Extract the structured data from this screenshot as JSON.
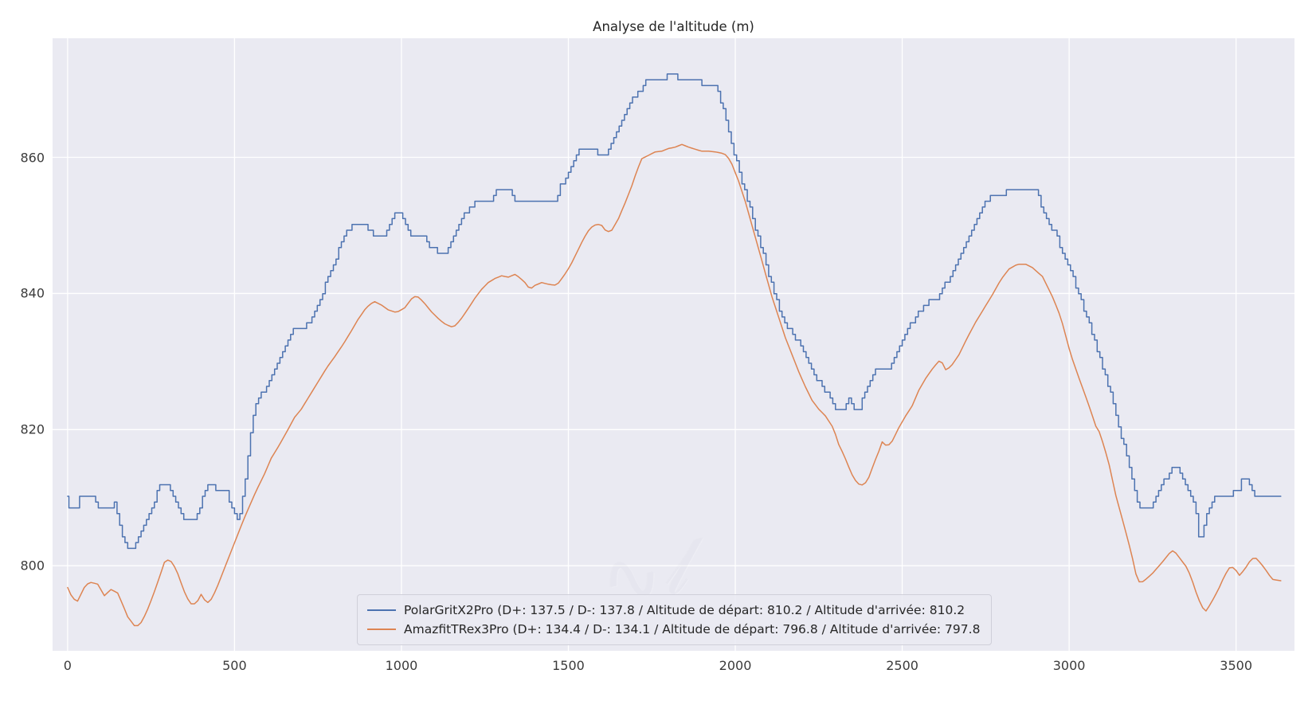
{
  "title": "Analyse de l'altitude (m)",
  "colors": {
    "plot_background": "#eaeaf2",
    "grid": "#ffffff",
    "polar_line": "#4c72b0",
    "amazfit_line": "#dd8452",
    "text": "#262626",
    "tick_text": "#3b3b3b"
  },
  "chart_data": {
    "type": "line",
    "title": "Analyse de l'altitude (m)",
    "xlabel": "",
    "ylabel": "",
    "xlim": [
      -45,
      3675
    ],
    "ylim": [
      787.5,
      877.5
    ],
    "x_ticks": [
      0,
      500,
      1000,
      1500,
      2000,
      2500,
      3000,
      3500
    ],
    "y_ticks": [
      800,
      820,
      840,
      860
    ],
    "grid": true,
    "legend_position": "lower center",
    "series": [
      {
        "name": "PolarGritX2Pro",
        "label": "PolarGritX2Pro (D+: 137.5 / D-: 137.8 / Altitude de départ: 810.2 / Altitude d'arrivée: 810.2",
        "color": "#4c72b0",
        "style": "step",
        "stats": {
          "d_plus": 137.5,
          "d_minus": 137.8,
          "altitude_depart": 810.2,
          "altitude_arrivee": 810.2
        },
        "x": [
          0,
          8,
          30,
          42,
          76,
          96,
          130,
          145,
          160,
          179,
          203,
          218,
          238,
          262,
          282,
          306,
          326,
          355,
          384,
          404,
          418,
          438,
          458,
          477,
          497,
          511,
          521,
          536,
          550,
          565,
          594,
          619,
          643,
          663,
          677,
          711,
          741,
          765,
          790,
          809,
          824,
          843,
          863,
          892,
          907,
          936,
          951,
          966,
          980,
          1005,
          1019,
          1034,
          1073,
          1088,
          1107,
          1141,
          1156,
          1176,
          1195,
          1210,
          1229,
          1268,
          1288,
          1327,
          1342,
          1464,
          1478,
          1498,
          1517,
          1532,
          1547,
          1581,
          1596,
          1610,
          1625,
          1640,
          1654,
          1669,
          1684,
          1698,
          1713,
          1728,
          1742,
          1786,
          1801,
          1820,
          1835,
          1899,
          1908,
          1947,
          1962,
          1977,
          1991,
          2006,
          2021,
          2035,
          2050,
          2065,
          2079,
          2094,
          2109,
          2123,
          2138,
          2153,
          2167,
          2182,
          2197,
          2211,
          2226,
          2241,
          2255,
          2275,
          2289,
          2304,
          2333,
          2343,
          2358,
          2377,
          2392,
          2407,
          2421,
          2465,
          2480,
          2499,
          2514,
          2529,
          2548,
          2563,
          2578,
          2587,
          2600,
          2617,
          2631,
          2651,
          2666,
          2680,
          2695,
          2709,
          2724,
          2739,
          2753,
          2768,
          2830,
          2905,
          2917,
          2934,
          2952,
          2970,
          2987,
          3005,
          3017,
          3034,
          3058,
          3082,
          3105,
          3123,
          3146,
          3164,
          3182,
          3193,
          3205,
          3213,
          3251,
          3258,
          3270,
          3286,
          3306,
          3318,
          3329,
          3345,
          3360,
          3372,
          3382,
          3389,
          3392,
          3404,
          3412,
          3420,
          3442,
          3487,
          3495,
          3512,
          3518,
          3540,
          3548,
          3558,
          3634
        ],
        "y": [
          810.2,
          808.5,
          808.2,
          810.5,
          810.5,
          808.3,
          808.3,
          809.3,
          806,
          802.5,
          802.5,
          804.5,
          806.5,
          809.5,
          812,
          812,
          810,
          806.5,
          806.5,
          809,
          811.8,
          811.8,
          810.8,
          811,
          808.5,
          807,
          808,
          813,
          819,
          823.6,
          826,
          828.3,
          830.5,
          833,
          834.8,
          834.8,
          837,
          840,
          843,
          845.5,
          847.3,
          849.3,
          850.3,
          850.3,
          849.3,
          848.3,
          848.3,
          850,
          851.5,
          851.5,
          850,
          848.3,
          848.3,
          847,
          846.3,
          846.3,
          848,
          850,
          851.8,
          852.8,
          853.6,
          853.6,
          855,
          855,
          853.6,
          853.6,
          855.5,
          857.5,
          859.5,
          860.8,
          861,
          861,
          860,
          860,
          861.5,
          863,
          864.8,
          866.3,
          867.8,
          869,
          869.5,
          870.8,
          871.3,
          871.3,
          872.5,
          872.5,
          871.3,
          871.3,
          870.3,
          870.3,
          868,
          865,
          862,
          859.5,
          857,
          854.5,
          852,
          849.5,
          847,
          844.5,
          842,
          839.5,
          837.5,
          836,
          834.5,
          833.5,
          832.5,
          831,
          829.5,
          828,
          827,
          825.5,
          824.5,
          823.3,
          823.3,
          824.5,
          823.3,
          823.3,
          825.5,
          827.5,
          829,
          829,
          830.5,
          832.5,
          834,
          835.5,
          836.7,
          838,
          838,
          839.8,
          838.8,
          839.8,
          841.3,
          843,
          844.5,
          846,
          847.5,
          849,
          850.5,
          852,
          853.5,
          854.3,
          855,
          855,
          853.3,
          851.5,
          849.7,
          847.9,
          845.7,
          843.9,
          842.1,
          839.8,
          836.3,
          832.7,
          829.1,
          826,
          821.9,
          818.3,
          814.8,
          812.1,
          809.8,
          808.4,
          808.4,
          809.3,
          810.5,
          812.3,
          813.9,
          814.2,
          814.2,
          812.6,
          811,
          809.6,
          808.4,
          806,
          804.2,
          804.2,
          807,
          808.5,
          810.3,
          810.3,
          811.4,
          811.4,
          812.4,
          812.4,
          811,
          810.3,
          810.2
        ]
      },
      {
        "name": "AmazfitTRex3Pro",
        "label": "AmazfitTRex3Pro (D+: 134.4 / D-: 134.1 / Altitude de départ: 796.8 / Altitude d'arrivée: 797.8",
        "color": "#dd8452",
        "style": "smooth",
        "stats": {
          "d_plus": 134.4,
          "d_minus": 134.1,
          "altitude_depart": 796.8,
          "altitude_arrivee": 797.8
        },
        "x": [
          0,
          15,
          30,
          50,
          65,
          90,
          110,
          130,
          150,
          165,
          180,
          200,
          215,
          235,
          255,
          275,
          290,
          305,
          325,
          340,
          355,
          370,
          385,
          400,
          415,
          425,
          445,
          465,
          485,
          505,
          525,
          545,
          565,
          590,
          610,
          635,
          660,
          680,
          700,
          725,
          750,
          775,
          800,
          825,
          850,
          870,
          890,
          905,
          920,
          940,
          960,
          985,
          1010,
          1030,
          1045,
          1065,
          1090,
          1115,
          1131,
          1155,
          1175,
          1200,
          1220,
          1240,
          1260,
          1280,
          1300,
          1320,
          1340,
          1355,
          1370,
          1385,
          1400,
          1420,
          1445,
          1465,
          1485,
          1505,
          1525,
          1545,
          1565,
          1585,
          1600,
          1615,
          1630,
          1650,
          1670,
          1690,
          1705,
          1720,
          1740,
          1760,
          1780,
          1800,
          1820,
          1840,
          1860,
          1880,
          1900,
          1920,
          1940,
          1960,
          1975,
          1990,
          2010,
          2030,
          2050,
          2070,
          2090,
          2110,
          2130,
          2150,
          2170,
          2190,
          2210,
          2230,
          2250,
          2270,
          2290,
          2300,
          2310,
          2325,
          2340,
          2355,
          2370,
          2385,
          2400,
          2415,
          2430,
          2440,
          2455,
          2470,
          2490,
          2510,
          2530,
          2550,
          2570,
          2590,
          2605,
          2615,
          2630,
          2645,
          2670,
          2695,
          2720,
          2745,
          2770,
          2795,
          2820,
          2845,
          2870,
          2890,
          2920,
          2950,
          2975,
          3005,
          3030,
          3058,
          3080,
          3090,
          3105,
          3120,
          3140,
          3165,
          3188,
          3200,
          3212,
          3225,
          3250,
          3275,
          3300,
          3313,
          3330,
          3350,
          3365,
          3377,
          3395,
          3408,
          3425,
          3447,
          3465,
          3484,
          3500,
          3510,
          3525,
          3543,
          3556,
          3575,
          3590,
          3608,
          3634
        ],
        "y": [
          796.8,
          795.2,
          794.8,
          796.8,
          797.6,
          797.3,
          795.6,
          796.5,
          796,
          794.3,
          792.5,
          791.2,
          791.2,
          793,
          795.5,
          798.3,
          800.5,
          801,
          799.5,
          797.5,
          795.5,
          794.4,
          794.4,
          795.8,
          794.6,
          794.6,
          796.5,
          799,
          801.5,
          804,
          806.5,
          808.8,
          811,
          813.5,
          815.8,
          817.8,
          820,
          821.8,
          823,
          825,
          827,
          829,
          830.7,
          832.5,
          834.5,
          836.2,
          837.6,
          838.4,
          838.8,
          838.3,
          837.6,
          837.2,
          837.9,
          839.2,
          839.7,
          838.8,
          837.3,
          836.1,
          835.5,
          835,
          836,
          837.8,
          839.3,
          840.6,
          841.6,
          842.2,
          842.6,
          842.4,
          842.8,
          842.3,
          841.6,
          840.6,
          841.2,
          841.6,
          841.3,
          841.2,
          842.5,
          844,
          846,
          848,
          849.6,
          850.2,
          850,
          849,
          849.3,
          851,
          853.3,
          855.8,
          858,
          859.8,
          860.3,
          860.8,
          860.9,
          861.3,
          861.5,
          861.9,
          861.5,
          861.2,
          860.9,
          860.9,
          860.8,
          860.6,
          860.3,
          859,
          856.5,
          853.5,
          850,
          846.5,
          843,
          839.5,
          836.5,
          833.5,
          831,
          828.5,
          826.3,
          824.3,
          823,
          822,
          820.5,
          819.3,
          817.8,
          816.3,
          814.5,
          812.8,
          812,
          811.8,
          813,
          815,
          816.8,
          818.2,
          817.5,
          818.3,
          820.3,
          822,
          823.5,
          825.8,
          827.5,
          828.9,
          829.8,
          830.3,
          828.8,
          829.2,
          831,
          833.5,
          835.8,
          837.8,
          839.8,
          842,
          843.6,
          844.3,
          844.3,
          843.8,
          842.5,
          839.5,
          836.5,
          831,
          827.5,
          823.7,
          820.5,
          819.7,
          817.5,
          814.8,
          810.3,
          805.8,
          801.5,
          798.8,
          797.4,
          797.8,
          798.9,
          800.3,
          801.8,
          802.3,
          801.2,
          799.9,
          798.4,
          796.5,
          794.2,
          793.2,
          794.5,
          796.5,
          798.5,
          800,
          799.3,
          798.6,
          799.4,
          800.8,
          801.3,
          800.3,
          799.3,
          798,
          797.8
        ]
      }
    ]
  }
}
